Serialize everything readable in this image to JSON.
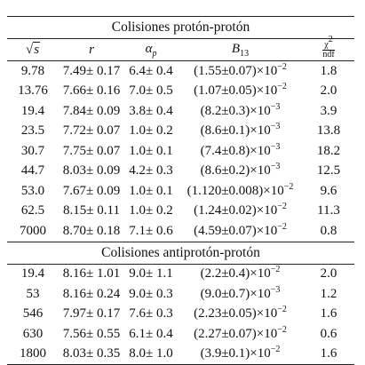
{
  "section_pp": "Colisiones protón-protón",
  "section_ppbar": "Colisiones antiprotón-protón",
  "headers": {
    "sqrt_s": "s",
    "r": "r",
    "alpha": "α",
    "alpha_sub": "p",
    "b13": "B",
    "b13_sub": "13",
    "chi_num": "χ",
    "chi_sup": "2",
    "chi_den": "ndf"
  },
  "pp_rows": [
    {
      "s": "9.78",
      "r": "7.49± 0.17",
      "a": "6.4± 0.4",
      "b": "(1.55±0.07)×10",
      "e": "−2",
      "chi": "1.8"
    },
    {
      "s": "13.76",
      "r": "7.66± 0.16",
      "a": "7.0± 0.5",
      "b": "(1.07±0.05)×10",
      "e": "−2",
      "chi": "2.0"
    },
    {
      "s": "19.4",
      "r": "7.84± 0.09",
      "a": "3.8± 0.4",
      "b": "(8.2±0.3)×10",
      "e": "−3",
      "chi": "3.9"
    },
    {
      "s": "23.5",
      "r": "7.72± 0.07",
      "a": "1.0± 0.2",
      "b": "(8.6±0.1)×10",
      "e": "−3",
      "chi": "13.8"
    },
    {
      "s": "30.7",
      "r": "7.75± 0.07",
      "a": "1.0± 0.1",
      "b": "(7.4±0.8)×10",
      "e": "−3",
      "chi": "18.2"
    },
    {
      "s": "44.7",
      "r": "8.03± 0.09",
      "a": "4.2± 0.3",
      "b": "(8.6±0.2)×10",
      "e": "−3",
      "chi": "12.5"
    },
    {
      "s": "53.0",
      "r": "7.67± 0.09",
      "a": "1.0± 0.1",
      "b": "(1.120±0.008)×10",
      "e": "−2",
      "chi": "9.6"
    },
    {
      "s": "62.5",
      "r": "8.15± 0.11",
      "a": "1.0± 0.2",
      "b": "(1.24±0.02)×10",
      "e": "−2",
      "chi": "11.3"
    },
    {
      "s": "7000",
      "r": "8.70± 0.18",
      "a": "7.1± 0.6",
      "b": "(4.59±0.07)×10",
      "e": "−2",
      "chi": "0.8"
    }
  ],
  "ppbar_rows": [
    {
      "s": "19.4",
      "r": "8.16± 1.01",
      "a": "9.0± 1.1",
      "b": "(2.2±0.4)×10",
      "e": "−2",
      "chi": "2.0"
    },
    {
      "s": "53",
      "r": "8.16± 0.24",
      "a": "9.0± 0.3",
      "b": "(9.0±0.7)×10",
      "e": "−3",
      "chi": "1.2"
    },
    {
      "s": "546",
      "r": "7.97± 0.17",
      "a": "7.6± 0.3",
      "b": "(2.23±0.05)×10",
      "e": "−2",
      "chi": "1.6"
    },
    {
      "s": "630",
      "r": "7.56± 0.55",
      "a": "6.1± 0.4",
      "b": "(2.27±0.07)×10",
      "e": "−2",
      "chi": "0.6"
    },
    {
      "s": "1800",
      "r": "8.03± 0.35",
      "a": "8.0± 1.0",
      "b": "(3.9±0.1)×10",
      "e": "−2",
      "chi": "1.6"
    }
  ]
}
